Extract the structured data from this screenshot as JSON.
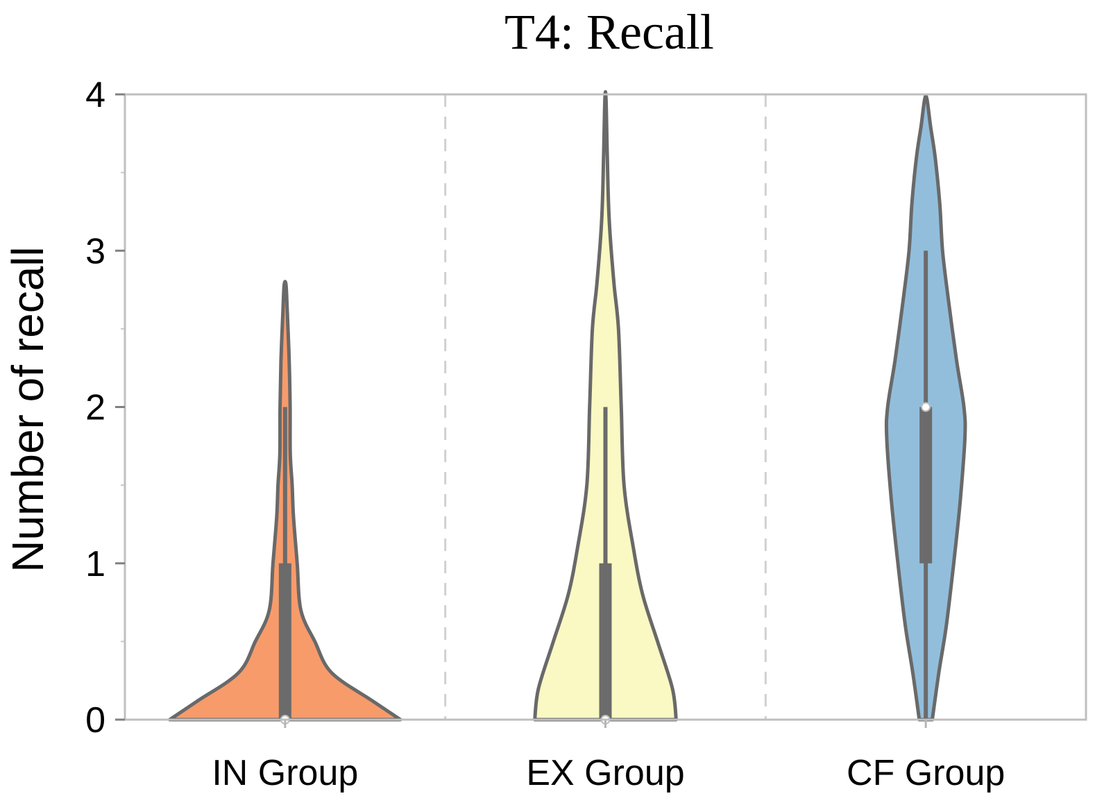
{
  "chart_data": {
    "type": "violin",
    "title": "T4: Recall",
    "xlabel": "",
    "ylabel": "Number of recall",
    "ylim": [
      0,
      4
    ],
    "yticks": [
      0,
      1,
      2,
      3,
      4
    ],
    "ytick_labels": [
      "0",
      "1",
      "2",
      "3",
      "4"
    ],
    "grid": false,
    "categories": [
      "IN Group",
      "EX Group",
      "CF Group"
    ],
    "groups": [
      {
        "name": "IN Group",
        "color": "#F79B6B",
        "median": 0,
        "q1": 0,
        "q3": 1,
        "whisker_low": 0,
        "whisker_high": 2,
        "density": [
          [
            0,
            0.62
          ],
          [
            0.12,
            0.47
          ],
          [
            0.3,
            0.25
          ],
          [
            0.5,
            0.16
          ],
          [
            0.7,
            0.085
          ],
          [
            1.0,
            0.065
          ],
          [
            1.3,
            0.045
          ],
          [
            1.5,
            0.038
          ],
          [
            1.7,
            0.028
          ],
          [
            2.0,
            0.027
          ],
          [
            2.3,
            0.022
          ],
          [
            2.6,
            0.012
          ],
          [
            2.78,
            0.005
          ]
        ]
      },
      {
        "name": "EX Group",
        "color": "#FAF8C3",
        "median": 0,
        "q1": 0,
        "q3": 1,
        "whisker_low": 0,
        "whisker_high": 2,
        "density": [
          [
            0,
            0.38
          ],
          [
            0.2,
            0.36
          ],
          [
            0.5,
            0.28
          ],
          [
            0.8,
            0.2
          ],
          [
            1.1,
            0.15
          ],
          [
            1.5,
            0.1
          ],
          [
            2.0,
            0.085
          ],
          [
            2.5,
            0.07
          ],
          [
            2.8,
            0.045
          ],
          [
            3.2,
            0.02
          ],
          [
            3.6,
            0.01
          ],
          [
            3.97,
            0.003
          ]
        ]
      },
      {
        "name": "CF Group",
        "color": "#92BEDC",
        "median": 2,
        "q1": 1,
        "q3": 2,
        "whisker_low": 0,
        "whisker_high": 3,
        "density": [
          [
            0,
            0.035
          ],
          [
            0.3,
            0.07
          ],
          [
            0.6,
            0.11
          ],
          [
            1.0,
            0.15
          ],
          [
            1.4,
            0.185
          ],
          [
            1.8,
            0.21
          ],
          [
            2.0,
            0.205
          ],
          [
            2.3,
            0.165
          ],
          [
            2.7,
            0.12
          ],
          [
            3.0,
            0.09
          ],
          [
            3.3,
            0.075
          ],
          [
            3.6,
            0.05
          ],
          [
            3.8,
            0.025
          ],
          [
            3.97,
            0.006
          ]
        ]
      }
    ]
  }
}
